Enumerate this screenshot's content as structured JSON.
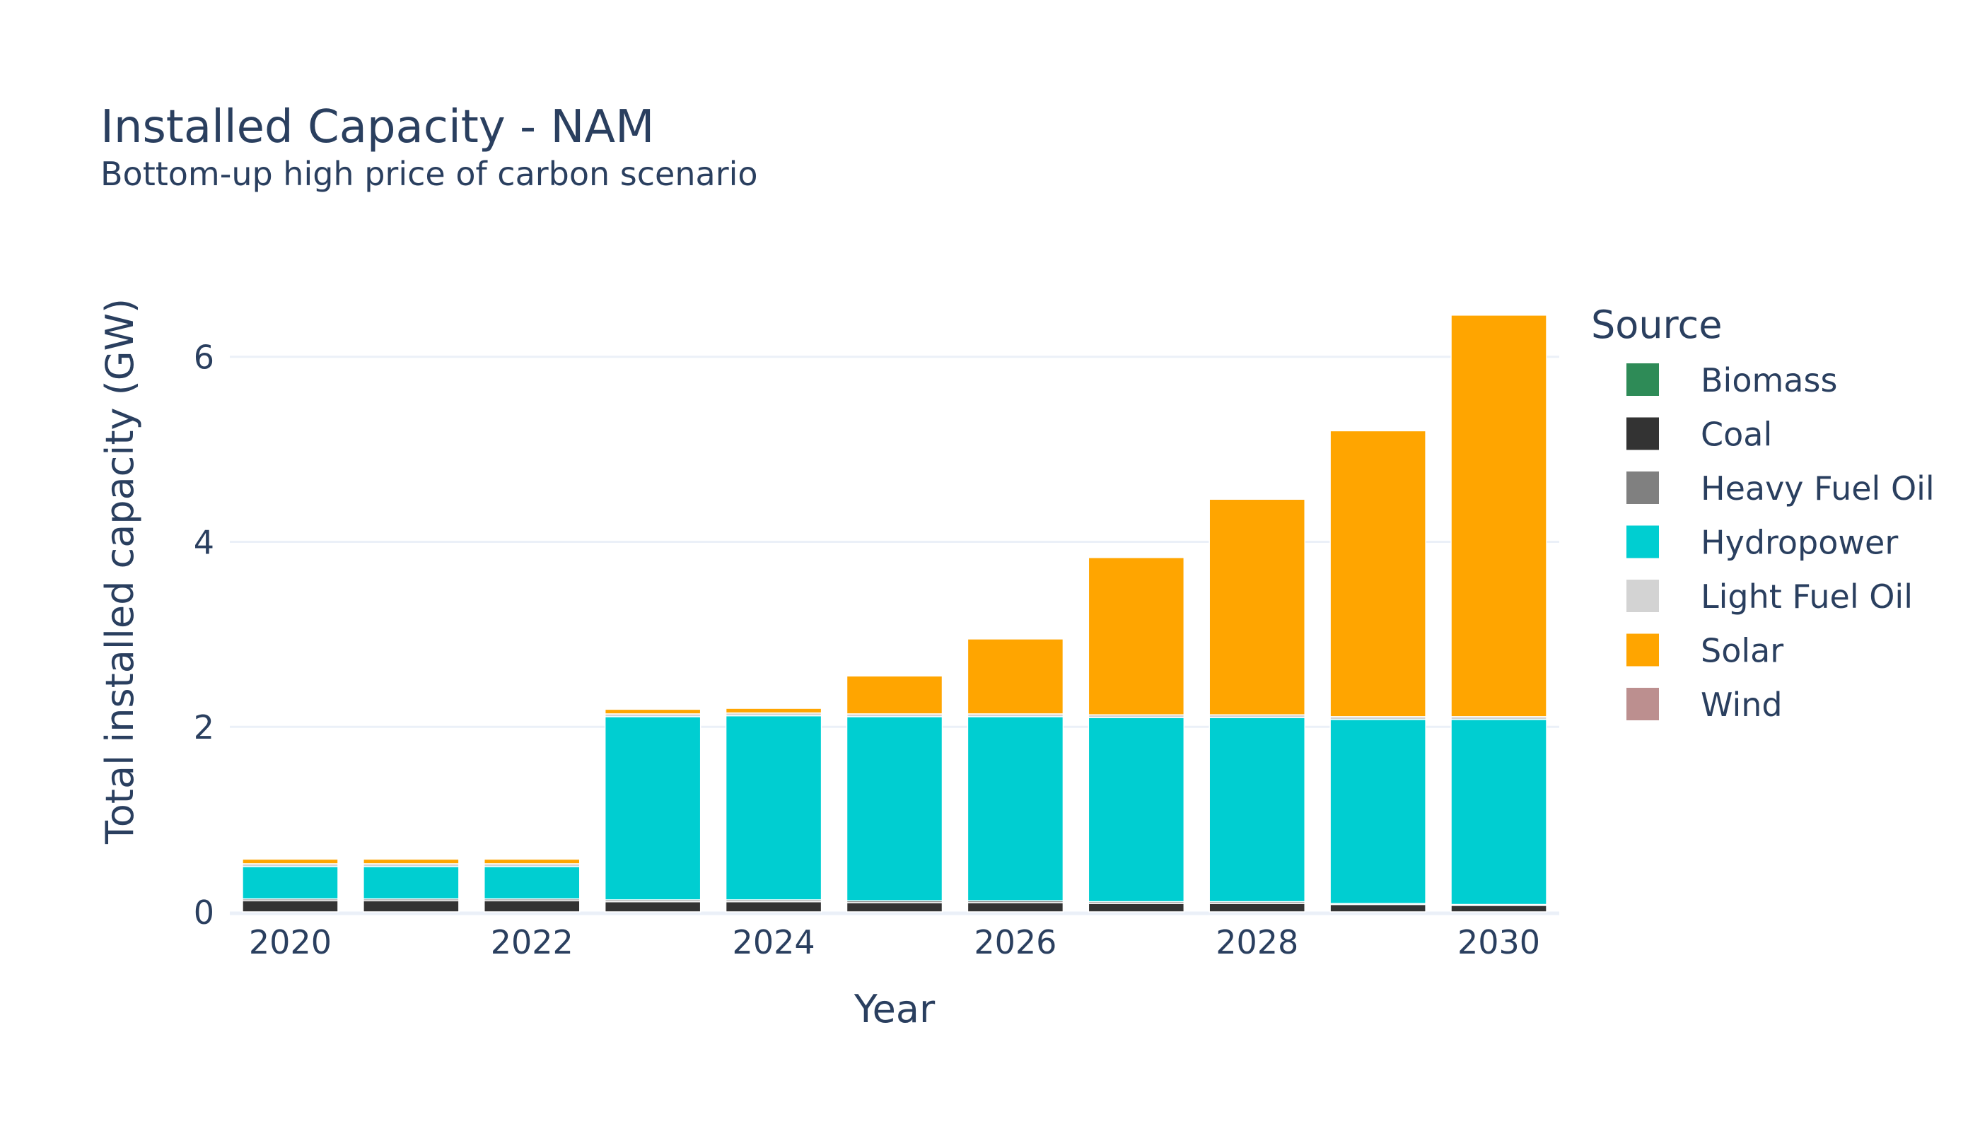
{
  "chart_data": {
    "type": "bar",
    "stacked": true,
    "title": "Installed Capacity - NAM",
    "subtitle": "Bottom-up high price of carbon scenario",
    "xlabel": "Year",
    "ylabel": "Total installed capacity (GW)",
    "x": [
      2020,
      2021,
      2022,
      2023,
      2024,
      2025,
      2026,
      2027,
      2028,
      2029,
      2030
    ],
    "x_tick_labels": [
      "2020",
      "2022",
      "2024",
      "2026",
      "2028",
      "2030"
    ],
    "x_tick_values": [
      2020,
      2022,
      2024,
      2026,
      2028,
      2030
    ],
    "xlim": [
      2019.5,
      2030.5
    ],
    "ylim": [
      0,
      6.8
    ],
    "y_tick_values": [
      0,
      2,
      4,
      6
    ],
    "y_tick_labels": [
      "0",
      "2",
      "4",
      "6"
    ],
    "grid": true,
    "legend_title": "Source",
    "legend_position": "right",
    "series": [
      {
        "name": "Biomass",
        "color": "#2e8b57",
        "values": [
          0,
          0,
          0,
          0,
          0,
          0,
          0,
          0,
          0,
          0,
          0
        ]
      },
      {
        "name": "Coal",
        "color": "#333333",
        "values": [
          0.12,
          0.12,
          0.12,
          0.11,
          0.11,
          0.1,
          0.1,
          0.09,
          0.09,
          0.08,
          0.07
        ]
      },
      {
        "name": "Heavy Fuel Oil",
        "color": "#808080",
        "values": [
          0.02,
          0.02,
          0.02,
          0.02,
          0.02,
          0.02,
          0.02,
          0.02,
          0.02,
          0.01,
          0.01
        ]
      },
      {
        "name": "Hydropower",
        "color": "#00ced1",
        "values": [
          0.35,
          0.35,
          0.35,
          1.98,
          1.99,
          1.99,
          1.99,
          1.99,
          1.99,
          1.99,
          2.0
        ]
      },
      {
        "name": "Light Fuel Oil",
        "color": "#d3d3d3",
        "values": [
          0.03,
          0.03,
          0.03,
          0.03,
          0.03,
          0.03,
          0.03,
          0.03,
          0.03,
          0.03,
          0.03
        ]
      },
      {
        "name": "Solar",
        "color": "#ffa500",
        "values": [
          0.05,
          0.05,
          0.05,
          0.05,
          0.05,
          0.41,
          0.81,
          1.7,
          2.33,
          3.09,
          4.34
        ]
      },
      {
        "name": "Wind",
        "color": "#bc8f8f",
        "values": [
          0,
          0,
          0,
          0,
          0,
          0,
          0,
          0,
          0,
          0,
          0
        ]
      }
    ]
  }
}
